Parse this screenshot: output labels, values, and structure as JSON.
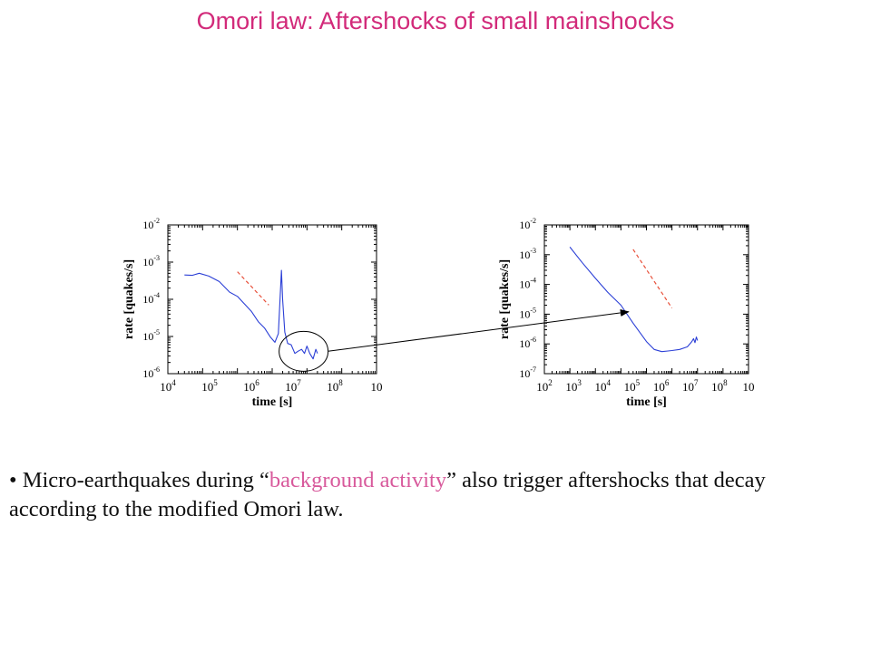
{
  "slide": {
    "title": "Omori law: Aftershocks of small mainshocks",
    "bullet": {
      "marker": "•",
      "before": "Micro-earthquakes during ",
      "open_quote": "“",
      "highlight": "background activity",
      "close_quote": "”",
      "after": " also trigger aftershocks that decay according to the modified Omori law."
    },
    "colors": {
      "title": "#d22a7a",
      "highlight": "#d85a9c",
      "series": "#2b3fd6",
      "reference": "#e8503a"
    }
  },
  "chart_data": [
    {
      "type": "line",
      "xlabel": "time [s]",
      "ylabel": "rate [quakes/s]",
      "x_scale": "log",
      "y_scale": "log",
      "xlim": [
        10000,
        10000000000
      ],
      "ylim": [
        1e-06,
        0.01
      ],
      "x_ticks": [
        {
          "base": "10",
          "exp": "4"
        },
        {
          "base": "10",
          "exp": "5"
        },
        {
          "base": "10",
          "exp": "6"
        },
        {
          "base": "10",
          "exp": "7"
        },
        {
          "base": "10",
          "exp": "8"
        },
        {
          "base": "10",
          "exp": ""
        }
      ],
      "y_ticks": [
        {
          "base": "10",
          "exp": "-6"
        },
        {
          "base": "10",
          "exp": "-5"
        },
        {
          "base": "10",
          "exp": "-4"
        },
        {
          "base": "10",
          "exp": "-3"
        },
        {
          "base": "10",
          "exp": "-2"
        }
      ],
      "series": [
        {
          "color": "#2b3fd6",
          "x": [
            30000,
            50000,
            80000,
            150000,
            300000,
            600000,
            1000000,
            1500000,
            2500000,
            4000000,
            6000000,
            9000000,
            12000000,
            15000000,
            17000000,
            18500000,
            20000000,
            23000000,
            28000000,
            35000000,
            45000000,
            55000000,
            70000000,
            85000000,
            100000000,
            120000000,
            150000000,
            180000000,
            200000000
          ],
          "y": [
            0.00045,
            0.00044,
            0.0005,
            0.00042,
            0.0003,
            0.000155,
            0.00012,
            8e-05,
            4.8e-05,
            2.5e-05,
            1.7e-05,
            9.5e-06,
            7e-06,
            1.2e-05,
            0.00012,
            0.0006,
            0.0001,
            1.3e-05,
            6.5e-06,
            6e-06,
            3.5e-06,
            4e-06,
            4.5e-06,
            3.5e-06,
            5.5e-06,
            3.5e-06,
            2.5e-06,
            4.5e-06,
            3.5e-06
          ]
        },
        {
          "color": "#e8503a",
          "style": "dashed",
          "x": [
            1000000,
            8000000
          ],
          "y": [
            0.00055,
            7e-05
          ]
        }
      ],
      "annotation": {
        "shape": "ellipse",
        "center_x": 80000000,
        "center_y": 4e-06
      }
    },
    {
      "type": "line",
      "xlabel": "time [s]",
      "ylabel": "rate [quakes/s]",
      "x_scale": "log",
      "y_scale": "log",
      "xlim": [
        100,
        10000000000
      ],
      "ylim": [
        1e-07,
        0.01
      ],
      "x_ticks": [
        {
          "base": "10",
          "exp": "2"
        },
        {
          "base": "10",
          "exp": "3"
        },
        {
          "base": "10",
          "exp": "4"
        },
        {
          "base": "10",
          "exp": "5"
        },
        {
          "base": "10",
          "exp": "6"
        },
        {
          "base": "10",
          "exp": "7"
        },
        {
          "base": "10",
          "exp": "8"
        },
        {
          "base": "10",
          "exp": ""
        }
      ],
      "y_ticks": [
        {
          "base": "10",
          "exp": "-7"
        },
        {
          "base": "10",
          "exp": "-6"
        },
        {
          "base": "10",
          "exp": "-5"
        },
        {
          "base": "10",
          "exp": "-4"
        },
        {
          "base": "10",
          "exp": "-3"
        },
        {
          "base": "10",
          "exp": "-2"
        }
      ],
      "series": [
        {
          "color": "#2b3fd6",
          "x": [
            1000,
            3000,
            10000,
            30000,
            100000,
            300000,
            1000000,
            2000000,
            4000000,
            7000000,
            10000000,
            20000000,
            40000000,
            60000000,
            70000000,
            80000000,
            90000000,
            100000000
          ],
          "y": [
            0.0018,
            0.00055,
            0.00016,
            5.5e-05,
            2e-05,
            5e-06,
            1.2e-06,
            6.5e-07,
            5.5e-07,
            5.8e-07,
            6e-07,
            6.5e-07,
            8e-07,
            1.2e-06,
            1.5e-06,
            1.1e-06,
            1.7e-06,
            1.3e-06
          ]
        },
        {
          "color": "#e8503a",
          "style": "dashed",
          "x": [
            300000,
            10000000
          ],
          "y": [
            0.0015,
            1.6e-05
          ]
        }
      ]
    }
  ]
}
